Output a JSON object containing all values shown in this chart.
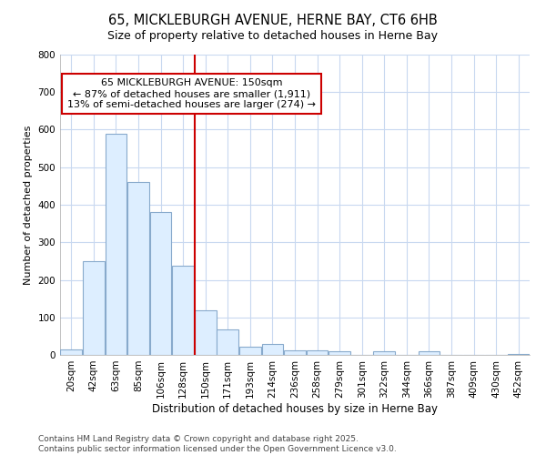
{
  "title": "65, MICKLEBURGH AVENUE, HERNE BAY, CT6 6HB",
  "subtitle": "Size of property relative to detached houses in Herne Bay",
  "xlabel": "Distribution of detached houses by size in Herne Bay",
  "ylabel": "Number of detached properties",
  "categories": [
    "20sqm",
    "42sqm",
    "63sqm",
    "85sqm",
    "106sqm",
    "128sqm",
    "150sqm",
    "171sqm",
    "193sqm",
    "214sqm",
    "236sqm",
    "258sqm",
    "279sqm",
    "301sqm",
    "322sqm",
    "344sqm",
    "366sqm",
    "387sqm",
    "409sqm",
    "430sqm",
    "452sqm"
  ],
  "values": [
    15,
    250,
    590,
    460,
    380,
    238,
    120,
    68,
    22,
    30,
    12,
    12,
    9,
    0,
    9,
    0,
    9,
    0,
    0,
    0,
    3
  ],
  "bar_color": "#ddeeff",
  "bar_edge_color": "#88aacc",
  "vline_color": "#cc0000",
  "vline_index": 6,
  "annotation_text": "65 MICKLEBURGH AVENUE: 150sqm\n← 87% of detached houses are smaller (1,911)\n13% of semi-detached houses are larger (274) →",
  "annotation_box_color": "#ffffff",
  "annotation_box_edge": "#cc0000",
  "ylim": [
    0,
    800
  ],
  "yticks": [
    0,
    100,
    200,
    300,
    400,
    500,
    600,
    700,
    800
  ],
  "bg_color": "#ffffff",
  "plot_bg_color": "#ffffff",
  "grid_color": "#c8d8f0",
  "footer": "Contains HM Land Registry data © Crown copyright and database right 2025.\nContains public sector information licensed under the Open Government Licence v3.0.",
  "title_fontsize": 10.5,
  "subtitle_fontsize": 9,
  "xlabel_fontsize": 8.5,
  "ylabel_fontsize": 8,
  "tick_fontsize": 7.5,
  "annotation_fontsize": 8,
  "footer_fontsize": 6.5
}
